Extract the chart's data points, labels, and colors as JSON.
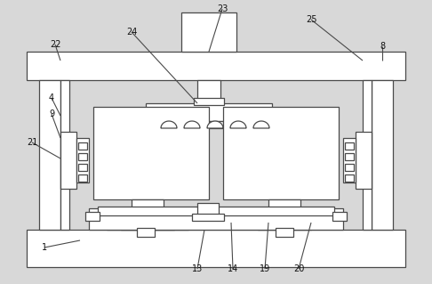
{
  "bg_color": "#d8d8d8",
  "line_color": "#4a4a4a",
  "white": "#ffffff",
  "lw": 0.9,
  "fig_w": 4.86,
  "fig_h": 3.19
}
